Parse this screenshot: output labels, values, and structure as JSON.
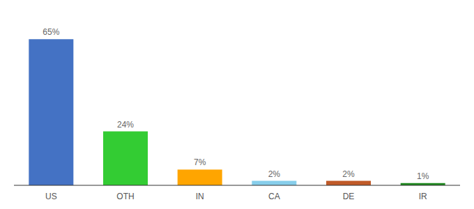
{
  "chart_data": {
    "type": "bar",
    "categories": [
      "US",
      "OTH",
      "IN",
      "CA",
      "DE",
      "IR"
    ],
    "values": [
      65,
      24,
      7,
      2,
      2,
      1
    ],
    "value_labels": [
      "65%",
      "24%",
      "7%",
      "2%",
      "2%",
      "1%"
    ],
    "colors": [
      "#4472C4",
      "#33CC33",
      "#FFA500",
      "#87CEEB",
      "#C05A28",
      "#228B22"
    ],
    "ylim": [
      0,
      75
    ],
    "data_labels": true,
    "tick_labels": "x",
    "grid": false
  }
}
